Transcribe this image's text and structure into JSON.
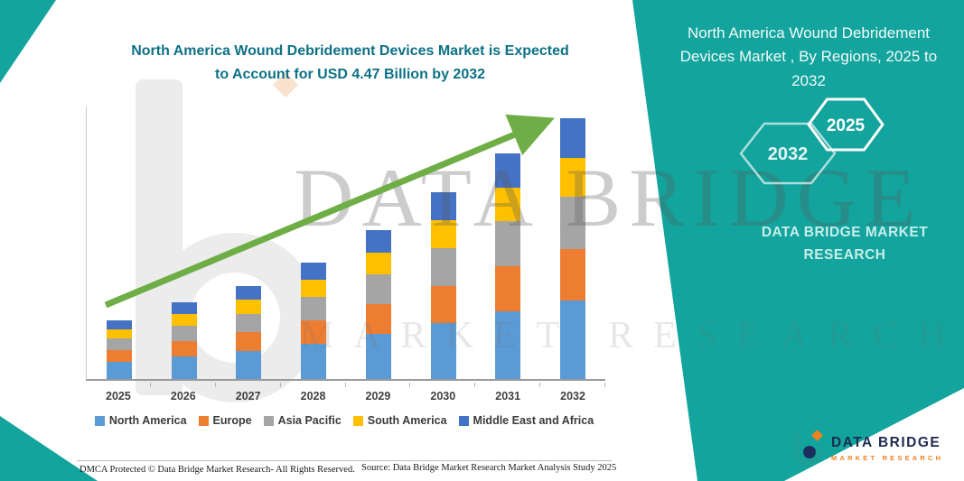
{
  "colors": {
    "teal": "#12a49d",
    "title_text": "#0d7186",
    "arrow_green": "#6fae46",
    "brand_navy": "#1b2b50",
    "brand_orange": "#ef8220"
  },
  "chart": {
    "title_line1": "North America Wound Debridement Devices Market is Expected",
    "title_line2": "to Account for USD 4.47 Billion by 2032"
  },
  "chart_data": {
    "type": "bar",
    "stacked": true,
    "title": "North America Wound Debridement Devices Market is Expected to Account for USD 4.47 Billion by 2032",
    "unit": "USD Billion",
    "categories": [
      "2025",
      "2026",
      "2027",
      "2028",
      "2029",
      "2030",
      "2031",
      "2032"
    ],
    "series": [
      {
        "name": "North America",
        "color": "#5b9bd5",
        "values": [
          0.3,
          0.39,
          0.48,
          0.6,
          0.77,
          0.96,
          1.16,
          1.34
        ]
      },
      {
        "name": "Europe",
        "color": "#ed7d31",
        "values": [
          0.2,
          0.26,
          0.32,
          0.4,
          0.51,
          0.64,
          0.77,
          0.89
        ]
      },
      {
        "name": "Asia Pacific",
        "color": "#a5a5a5",
        "values": [
          0.2,
          0.26,
          0.32,
          0.4,
          0.51,
          0.64,
          0.77,
          0.89
        ]
      },
      {
        "name": "South America",
        "color": "#ffc000",
        "values": [
          0.15,
          0.2,
          0.24,
          0.3,
          0.38,
          0.48,
          0.58,
          0.67
        ]
      },
      {
        "name": "Middle East and Africa",
        "color": "#4472c4",
        "values": [
          0.15,
          0.2,
          0.24,
          0.3,
          0.38,
          0.48,
          0.58,
          0.68
        ]
      }
    ],
    "totals": [
      1.0,
      1.31,
      1.6,
      2.0,
      2.55,
      3.2,
      3.86,
      4.47
    ],
    "ylim": [
      0,
      4.7
    ],
    "grid": false,
    "legend_position": "bottom",
    "annotations": [
      "green upward trend arrow from 2025 to 2032"
    ]
  },
  "side_panel": {
    "title": "North America Wound Debridement Devices Market , By Regions, 2025 to 2032",
    "hexagon_back": "2032",
    "hexagon_front": "2025",
    "brand_text": "DATA BRIDGE MARKET RESEARCH"
  },
  "watermark": {
    "line1": "DATA BRIDGE",
    "line2": "MARKET RESEARCH"
  },
  "footer": {
    "dmca": "DMCA Protected © Data Bridge Market Research-  All Rights Reserved.",
    "source": "Source: Data Bridge Market Research  Market Analysis Study 2025"
  },
  "brand": {
    "name": "DATA BRIDGE",
    "tagline": "MARKET RESEARCH"
  }
}
